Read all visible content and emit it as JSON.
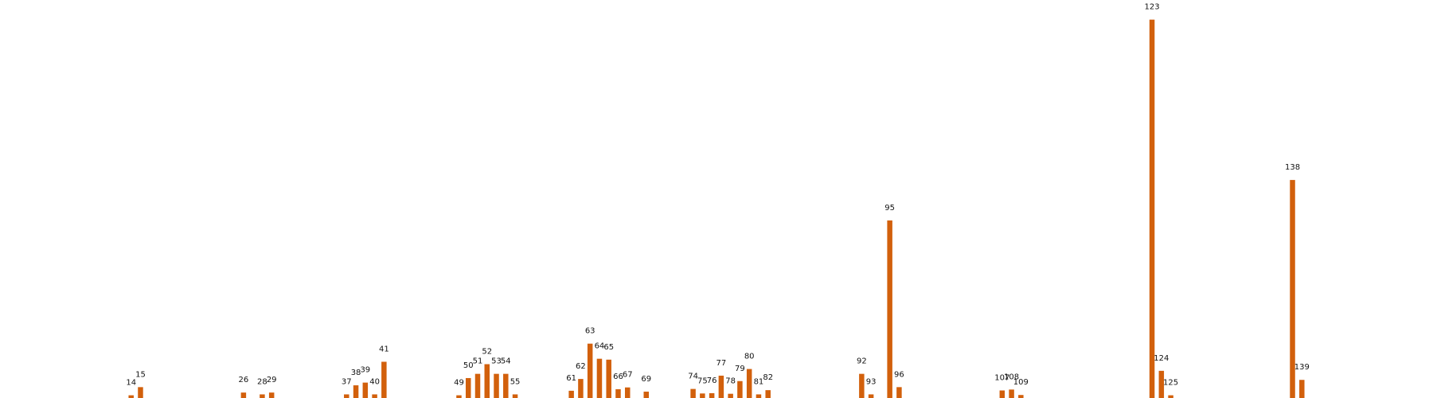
{
  "chart_data": {
    "type": "bar",
    "title": "",
    "xlabel": "",
    "ylabel": "",
    "grid": false,
    "legend": "none",
    "bar_color": "#d2600c",
    "x_range": [
      0,
      153
    ],
    "ylim": [
      0,
      126
    ],
    "categories": [
      "14",
      "15",
      "26",
      "28",
      "29",
      "37",
      "38",
      "39",
      "40",
      "41",
      "49",
      "50",
      "51",
      "52",
      "53",
      "54",
      "55",
      "61",
      "62",
      "63",
      "64",
      "65",
      "66",
      "67",
      "69",
      "74",
      "75",
      "76",
      "77",
      "78",
      "79",
      "80",
      "81",
      "82",
      "92",
      "93",
      "95",
      "96",
      "107",
      "108",
      "109",
      "123",
      "124",
      "125",
      "138",
      "139"
    ],
    "x": [
      14,
      15,
      26,
      28,
      29,
      37,
      38,
      39,
      40,
      41,
      49,
      50,
      51,
      52,
      53,
      54,
      55,
      61,
      62,
      63,
      64,
      65,
      66,
      67,
      69,
      74,
      75,
      76,
      77,
      78,
      79,
      80,
      81,
      82,
      92,
      93,
      95,
      96,
      107,
      108,
      109,
      123,
      124,
      125,
      138,
      139
    ],
    "values": [
      0.9,
      3.6,
      1.8,
      1.2,
      1.8,
      1.2,
      4.2,
      5.1,
      1.2,
      12.0,
      0.9,
      6.6,
      8.0,
      11.2,
      8.0,
      8.0,
      1.2,
      2.4,
      6.3,
      18.0,
      13.0,
      12.7,
      2.9,
      3.5,
      2.1,
      3.0,
      1.5,
      1.6,
      7.4,
      1.4,
      5.6,
      9.6,
      1.2,
      2.6,
      8.0,
      1.2,
      58.8,
      3.6,
      2.5,
      2.8,
      1.0,
      125.3,
      9.0,
      0.9,
      72.2,
      6.0
    ]
  }
}
